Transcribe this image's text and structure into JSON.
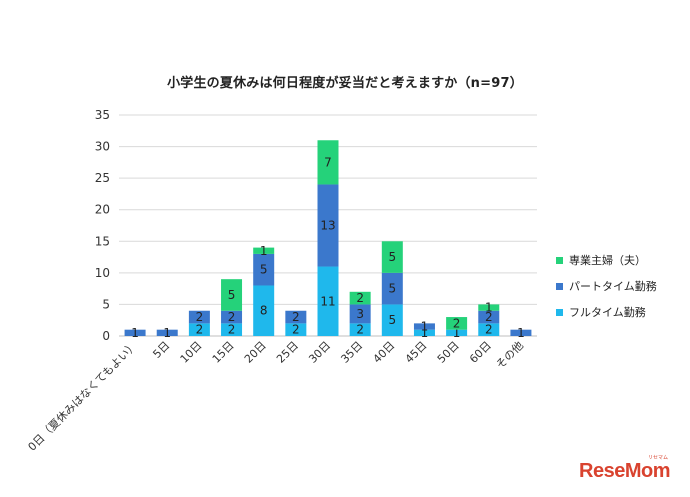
{
  "chart_data": {
    "type": "bar",
    "stacked": true,
    "title": "小学生の夏休みは何日程度が妥当だと考えますか（n=97）",
    "categories": [
      "0日（夏休みはなくてもよい）",
      "5日",
      "10日",
      "15日",
      "20日",
      "25日",
      "30日",
      "35日",
      "40日",
      "45日",
      "50日",
      "60日",
      "その他"
    ],
    "series": [
      {
        "name": "フルタイム勤務",
        "color": "#1fb8ec",
        "values": [
          0,
          0,
          2,
          2,
          8,
          2,
          11,
          2,
          5,
          1,
          1,
          2,
          0
        ],
        "labels": [
          "",
          "",
          "2",
          "2",
          "8",
          "2",
          "11",
          "2",
          "5",
          "1",
          "1",
          "2",
          ""
        ]
      },
      {
        "name": "パートタイム勤務",
        "color": "#3b78cc",
        "values": [
          1,
          1,
          2,
          2,
          5,
          2,
          13,
          3,
          5,
          1,
          0,
          2,
          1
        ],
        "labels": [
          "1",
          "1",
          "2",
          "2",
          "5",
          "2",
          "13",
          "3",
          "5",
          "1",
          "",
          "2",
          "1"
        ]
      },
      {
        "name": "専業主婦（夫）",
        "color": "#25d27a",
        "values": [
          0,
          0,
          0,
          5,
          1,
          0,
          7,
          2,
          5,
          0,
          2,
          1,
          0
        ],
        "labels": [
          "",
          "",
          "",
          "5",
          "1",
          "",
          "7",
          "2",
          "5",
          "",
          "2",
          "1",
          ""
        ]
      }
    ],
    "legend_order": [
      "専業主婦（夫）",
      "パートタイム勤務",
      "フルタイム勤務"
    ],
    "legend_position": "right",
    "ylim": [
      0,
      35
    ],
    "yticks": [
      0,
      5,
      10,
      15,
      20,
      25,
      30,
      35
    ],
    "grid": true,
    "xlabel": "",
    "ylabel": ""
  },
  "logo": {
    "text": "ReseMom",
    "ruby": "リセマム"
  }
}
